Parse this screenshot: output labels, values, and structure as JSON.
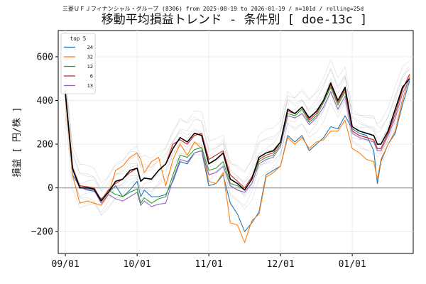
{
  "chart_data": {
    "type": "line",
    "suptitle": "三菱ＵＦＪフィナンシャル・グループ (8306) from 2025-08-19 to 2026-01-19 / n=101d / rolling=25d",
    "title": "移動平均損益トレンド - 条件別 [ doe-13c ]",
    "xlabel": "",
    "ylabel": "損益 [ 円/株 ]",
    "xlim": [
      -2,
      97
    ],
    "ylim": [
      -300,
      720
    ],
    "x_ticks": [
      {
        "x": 0,
        "label": "09/01"
      },
      {
        "x": 20,
        "label": "10/01"
      },
      {
        "x": 40,
        "label": "11/01"
      },
      {
        "x": 60,
        "label": "12/01"
      },
      {
        "x": 80,
        "label": "01/01"
      }
    ],
    "y_ticks": [
      -200,
      0,
      200,
      400,
      600
    ],
    "zero_line": 0,
    "grid": true,
    "legend": {
      "title": "top 5",
      "position": "top-left"
    },
    "colors": {
      "24": "#1f77b4",
      "32": "#ff7f0e",
      "12": "#2ca02c",
      "6": "#d62728",
      "13": "#9467bd",
      "best": "#000000",
      "background_lines": "#bbbbbb"
    },
    "x": [
      0,
      2,
      4,
      6,
      8,
      10,
      12,
      14,
      16,
      18,
      20,
      21,
      22,
      24,
      26,
      28,
      30,
      32,
      34,
      36,
      38,
      40,
      42,
      44,
      46,
      48,
      50,
      52,
      54,
      56,
      58,
      60,
      62,
      64,
      66,
      68,
      70,
      72,
      74,
      76,
      78,
      80,
      82,
      84,
      86,
      87,
      88,
      90,
      92,
      94,
      96
    ],
    "series": [
      {
        "name": "24",
        "values": [
          432,
          60,
          5,
          -10,
          -15,
          -50,
          -20,
          10,
          -40,
          -10,
          30,
          -40,
          -10,
          -40,
          -40,
          -30,
          30,
          120,
          110,
          160,
          170,
          10,
          20,
          60,
          -70,
          -120,
          -200,
          -160,
          -110,
          60,
          80,
          100,
          240,
          210,
          240,
          170,
          200,
          230,
          280,
          270,
          330,
          270,
          250,
          240,
          170,
          20,
          120,
          200,
          250,
          380,
          490
        ]
      },
      {
        "name": "32",
        "values": [
          420,
          60,
          -70,
          -60,
          -70,
          -80,
          -30,
          80,
          100,
          140,
          160,
          130,
          70,
          120,
          140,
          10,
          130,
          200,
          150,
          210,
          180,
          30,
          20,
          70,
          -160,
          -170,
          -250,
          -150,
          -120,
          50,
          70,
          100,
          230,
          200,
          230,
          180,
          210,
          220,
          260,
          260,
          310,
          180,
          160,
          130,
          120,
          40,
          130,
          200,
          260,
          400,
          510
        ]
      },
      {
        "name": "12",
        "values": [
          445,
          90,
          10,
          5,
          0,
          -55,
          -10,
          -30,
          -40,
          -20,
          -5,
          -70,
          -45,
          -70,
          -50,
          -40,
          60,
          150,
          140,
          175,
          185,
          80,
          90,
          120,
          20,
          10,
          -10,
          40,
          120,
          140,
          150,
          200,
          340,
          330,
          360,
          300,
          330,
          390,
          460,
          380,
          440,
          260,
          240,
          230,
          220,
          180,
          180,
          250,
          340,
          450,
          520
        ]
      },
      {
        "name": "6",
        "values": [
          445,
          90,
          10,
          5,
          0,
          -55,
          -10,
          20,
          40,
          70,
          90,
          30,
          45,
          40,
          80,
          110,
          200,
          220,
          200,
          240,
          250,
          130,
          150,
          170,
          60,
          30,
          0,
          50,
          130,
          150,
          160,
          210,
          350,
          340,
          370,
          310,
          340,
          400,
          470,
          390,
          450,
          260,
          240,
          230,
          220,
          180,
          180,
          250,
          340,
          450,
          520
        ]
      },
      {
        "name": "13",
        "values": [
          430,
          80,
          0,
          -5,
          -10,
          -70,
          -30,
          -50,
          -60,
          -40,
          -20,
          -80,
          -60,
          -85,
          -75,
          -70,
          40,
          130,
          120,
          160,
          170,
          60,
          70,
          100,
          10,
          -10,
          -20,
          20,
          110,
          130,
          140,
          190,
          330,
          320,
          340,
          290,
          320,
          370,
          440,
          360,
          420,
          250,
          230,
          220,
          210,
          170,
          170,
          240,
          320,
          430,
          500
        ]
      },
      {
        "name": "",
        "values": [
          430,
          90,
          0,
          0,
          -5,
          -60,
          -20,
          30,
          40,
          80,
          90,
          30,
          45,
          40,
          80,
          110,
          180,
          230,
          210,
          250,
          240,
          110,
          130,
          160,
          40,
          20,
          -10,
          40,
          140,
          160,
          170,
          210,
          360,
          340,
          370,
          320,
          350,
          400,
          480,
          400,
          460,
          280,
          260,
          250,
          240,
          200,
          200,
          260,
          360,
          460,
          500
        ]
      }
    ]
  }
}
